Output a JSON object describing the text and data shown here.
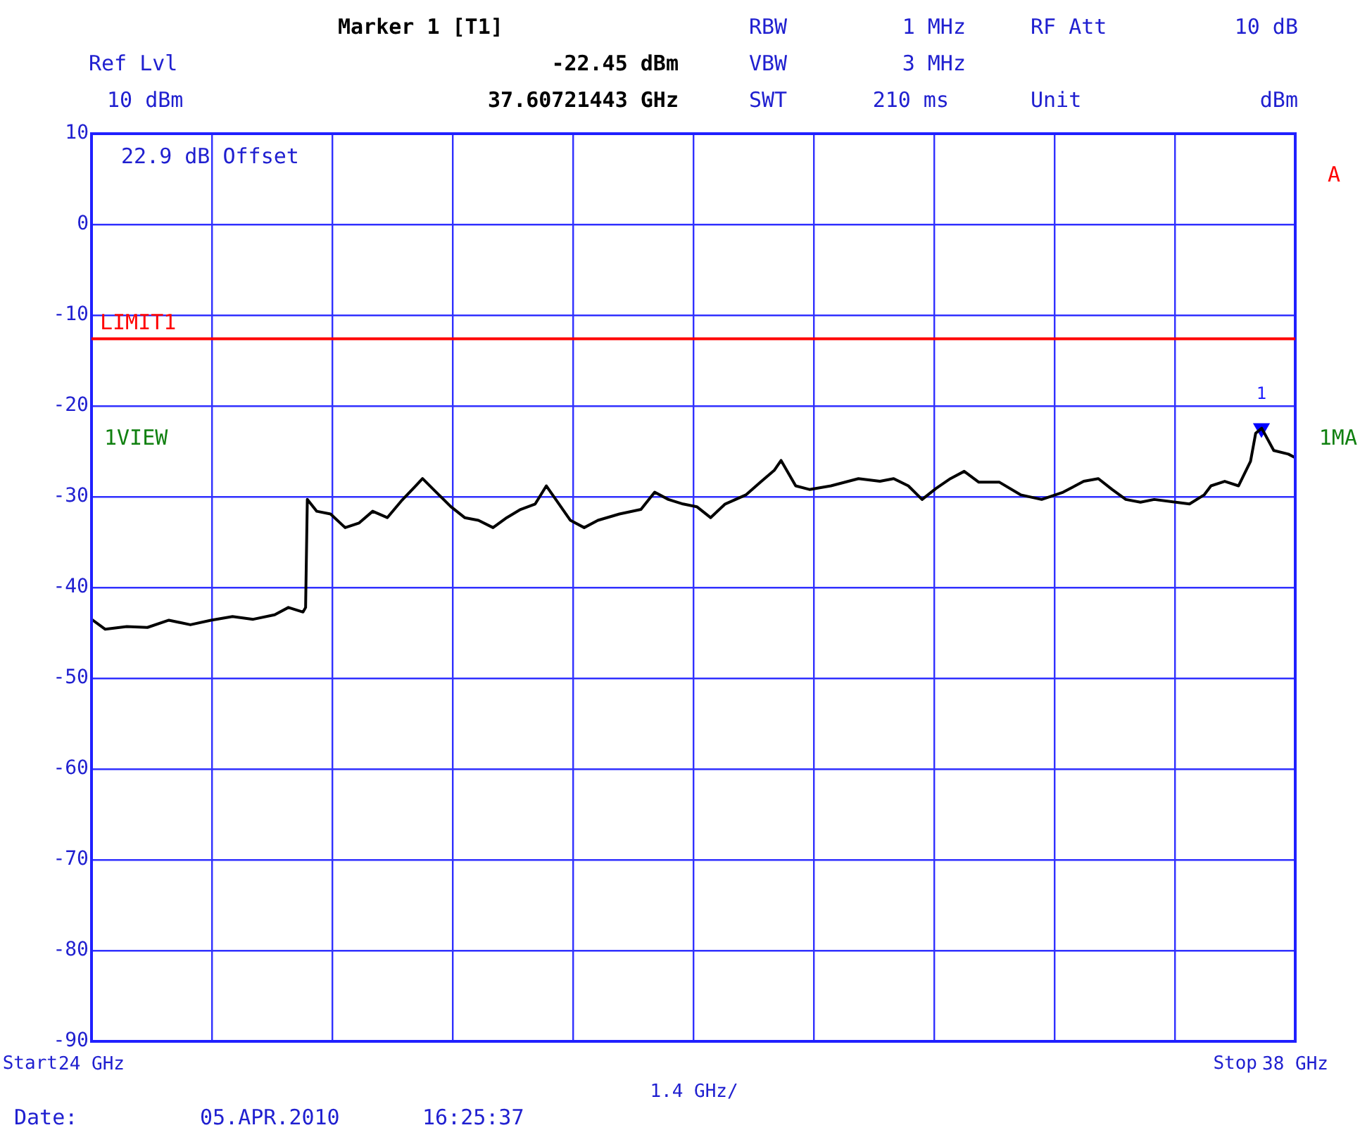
{
  "chart_data": {
    "type": "line",
    "xlim": [
      24,
      38
    ],
    "xticks": [
      {
        "value": 24,
        "label": "24 GHz"
      },
      {
        "value": 25.4,
        "label": null
      },
      {
        "value": 26.8,
        "label": null
      },
      {
        "value": 28.2,
        "label": null
      },
      {
        "value": 29.6,
        "label": null
      },
      {
        "value": 31,
        "label": null
      },
      {
        "value": 32.4,
        "label": null
      },
      {
        "value": 33.8,
        "label": null
      },
      {
        "value": 35.2,
        "label": null
      },
      {
        "value": 36.6,
        "label": null
      },
      {
        "value": 38,
        "label": "38 GHz"
      }
    ],
    "ylim": [
      -90,
      10
    ],
    "yticks": [
      -90,
      -80,
      -70,
      -60,
      -50,
      -40,
      -30,
      -20,
      -10,
      0,
      10
    ],
    "grid": true,
    "marker": "none",
    "line_style": "solid",
    "series": [
      {
        "color": "#000000",
        "x": [
          24.0,
          24.16,
          24.41,
          24.65,
          24.9,
          25.15,
          25.39,
          25.64,
          25.88,
          26.13,
          26.29,
          26.46,
          26.49,
          26.51,
          26.62,
          26.78,
          26.95,
          27.11,
          27.27,
          27.44,
          27.6,
          27.77,
          27.85,
          28.01,
          28.18,
          28.34,
          28.5,
          28.67,
          28.83,
          28.99,
          29.16,
          29.29,
          29.4,
          29.57,
          29.73,
          29.89,
          30.14,
          30.39,
          30.55,
          30.71,
          30.88,
          31.04,
          31.2,
          31.37,
          31.61,
          31.78,
          31.94,
          32.02,
          32.19,
          32.35,
          32.6,
          32.92,
          33.17,
          33.33,
          33.5,
          33.66,
          33.82,
          33.99,
          34.15,
          34.32,
          34.56,
          34.81,
          35.05,
          35.3,
          35.54,
          35.71,
          35.87,
          36.03,
          36.2,
          36.36,
          36.61,
          36.77,
          36.94,
          37.02,
          37.18,
          37.34,
          37.48,
          37.54,
          37.61,
          37.75,
          37.92,
          38.0
        ],
        "values": [
          -43.5,
          -44.6,
          -44.3,
          -44.4,
          -43.6,
          -44.1,
          -43.6,
          -43.2,
          -43.5,
          -43.0,
          -42.2,
          -42.7,
          -42.2,
          -30.3,
          -31.6,
          -31.9,
          -33.4,
          -32.9,
          -31.6,
          -32.3,
          -30.5,
          -28.8,
          -28.0,
          -29.5,
          -31.1,
          -32.3,
          -32.6,
          -33.4,
          -32.3,
          -31.4,
          -30.8,
          -28.8,
          -30.3,
          -32.6,
          -33.4,
          -32.6,
          -31.9,
          -31.4,
          -29.5,
          -30.3,
          -30.8,
          -31.1,
          -32.3,
          -30.8,
          -29.8,
          -28.4,
          -27.1,
          -26.0,
          -28.8,
          -29.2,
          -28.8,
          -28.0,
          -28.3,
          -28.0,
          -28.8,
          -30.3,
          -29.1,
          -28.0,
          -27.2,
          -28.4,
          -28.4,
          -29.8,
          -30.3,
          -29.5,
          -28.3,
          -28.0,
          -29.2,
          -30.3,
          -30.6,
          -30.3,
          -30.6,
          -30.8,
          -29.8,
          -28.8,
          -28.3,
          -28.8,
          -26.1,
          -23.0,
          -22.45,
          -24.9,
          -25.3,
          -25.7
        ]
      },
      {
        "type": "scatter",
        "marker": "triangle",
        "color": "#0000ff",
        "x": [
          37.60721443
        ],
        "values": [
          -22.45
        ]
      }
    ],
    "ref_lines": [
      {
        "axis": "y",
        "value": -12.6,
        "label": "LIMIT1",
        "color": "#ff0000"
      }
    ],
    "annotations": [
      "Marker 1 [T1]",
      "-22.45 dBm",
      "37.60721443 GHz",
      "Ref Lvl",
      "10 dBm",
      "RBW",
      "1 MHz",
      "VBW",
      "3 MHz",
      "SWT",
      "210 ms",
      "RF Att",
      "10 dB",
      "Unit",
      "dBm",
      "22.9 dB Offset",
      "A",
      "1VIEW",
      "1MA",
      "1.4 GHz/",
      "Start",
      "Stop",
      "Date:",
      "05.APR.2010",
      "16:25:37",
      {
        "text": "1",
        "x": 37.60721443,
        "y": -22.45
      }
    ]
  }
}
